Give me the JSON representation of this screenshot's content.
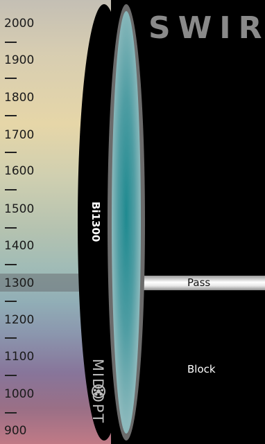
{
  "scale": {
    "labels": [
      "2000",
      "1900",
      "1800",
      "1700",
      "1600",
      "1500",
      "1400",
      "1300",
      "1200",
      "1100",
      "1000",
      "900"
    ],
    "highlighted_label": "1300"
  },
  "title": "SWIR",
  "filter": {
    "product_label": "Bi1300",
    "brand_label": "MIDOPT",
    "brand_icon": "aperture-icon"
  },
  "pass_label": "Pass",
  "block_label": "Block",
  "colors": {
    "background": "#000000",
    "lens_glass": "#2f8f95",
    "lens_rim": "#6b6b6b",
    "title": "#8a8a8a"
  }
}
